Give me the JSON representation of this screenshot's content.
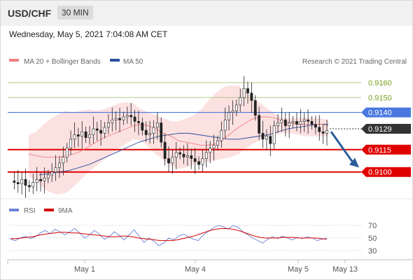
{
  "header": {
    "symbol": "USD/CHF",
    "timeframe": "30 MIN"
  },
  "datetime": "Wednesday, May 5, 2021 7:04:08 AM CET",
  "legend": {
    "ma20": {
      "label": "MA 20 + Bollinger Bands",
      "color": "#f08080"
    },
    "ma50": {
      "label": "MA 50",
      "color": "#2b4f9c"
    },
    "credit": "Research © 2021 Trading Central"
  },
  "rsi_legend": {
    "rsi": {
      "label": "RSI",
      "color": "#6c84d8"
    },
    "ma9": {
      "label": "9MA",
      "color": "#d40000"
    }
  },
  "chart_data": {
    "type": "line",
    "subtype": "candlestick",
    "ylim": [
      0.9082,
      0.9168
    ],
    "x_ticks": [
      "May 1",
      "May 4",
      "May 5",
      "May 13"
    ],
    "price_series": [
      0.9094,
      0.9093,
      0.9092,
      0.9095,
      0.9091,
      0.909,
      0.9093,
      0.9095,
      0.9094,
      0.9096,
      0.9098,
      0.91,
      0.9103,
      0.9106,
      0.911,
      0.9116,
      0.9122,
      0.9125,
      0.9124,
      0.9127,
      0.9123,
      0.9125,
      0.9129,
      0.9128,
      0.9126,
      0.913,
      0.9133,
      0.9135,
      0.9136,
      0.9135,
      0.9137,
      0.9138,
      0.9137,
      0.9134,
      0.9133,
      0.9128,
      0.9125,
      0.9126,
      0.913,
      0.9133,
      0.912,
      0.9109,
      0.9106,
      0.911,
      0.9113,
      0.9112,
      0.911,
      0.9111,
      0.9109,
      0.9107,
      0.9105,
      0.9109,
      0.9113,
      0.9116,
      0.9118,
      0.9121,
      0.9128,
      0.9135,
      0.914,
      0.9141,
      0.9145,
      0.915,
      0.9156,
      0.9153,
      0.9148,
      0.9138,
      0.9126,
      0.9122,
      0.9124,
      0.9119,
      0.9131,
      0.9133,
      0.9135,
      0.9131,
      0.9133,
      0.9134,
      0.9132,
      0.9134,
      0.9135,
      0.9134,
      0.9132,
      0.913,
      0.9127,
      0.9126,
      0.9128
    ],
    "ma20": [
      0.9112,
      0.9111,
      0.911,
      0.911,
      0.911,
      0.9111,
      0.9112,
      0.9114,
      0.9117,
      0.912,
      0.9123,
      0.9125,
      0.9127,
      0.9129,
      0.9131,
      0.9132,
      0.9131,
      0.9129,
      0.9126,
      0.9124,
      0.9121,
      0.912,
      0.9119,
      0.9118,
      0.9118,
      0.9119,
      0.9122,
      0.9126,
      0.913,
      0.9133,
      0.9136,
      0.9137,
      0.9137,
      0.9136,
      0.9134,
      0.9133,
      0.9132,
      0.9132,
      0.9132,
      0.9132,
      0.9131
    ],
    "bb_upper": [
      0.9125,
      0.9127,
      0.9132,
      0.9136,
      0.9139,
      0.9141,
      0.914,
      0.9141,
      0.9142,
      0.9141,
      0.9142,
      0.9144,
      0.9146,
      0.9147,
      0.9146,
      0.9142,
      0.914,
      0.9138,
      0.9136,
      0.9134,
      0.9134,
      0.9136,
      0.9138,
      0.9142,
      0.9148,
      0.9153,
      0.9157,
      0.9158,
      0.9158,
      0.9154,
      0.9149,
      0.9146,
      0.9142,
      0.9139,
      0.9136,
      0.9136,
      0.9136,
      0.9137,
      0.9136,
      0.9136,
      0.9135
    ],
    "bb_lower": [
      0.9097,
      0.9094,
      0.9089,
      0.9086,
      0.9085,
      0.9086,
      0.909,
      0.9095,
      0.91,
      0.9104,
      0.9108,
      0.9112,
      0.9116,
      0.9119,
      0.9122,
      0.9121,
      0.9117,
      0.9112,
      0.9108,
      0.9104,
      0.9102,
      0.9103,
      0.9105,
      0.9106,
      0.9107,
      0.9108,
      0.9109,
      0.911,
      0.9112,
      0.9116,
      0.9119,
      0.9122,
      0.9124,
      0.9125,
      0.9126,
      0.9126,
      0.9125,
      0.9124,
      0.9124,
      0.9124,
      0.9124
    ],
    "ma50": [
      0.9098,
      0.9099,
      0.91,
      0.9101,
      0.9103,
      0.9105,
      0.9108,
      0.9111,
      0.9114,
      0.9117,
      0.912,
      0.9122,
      0.9124,
      0.9125,
      0.9126,
      0.9126,
      0.9125,
      0.9124,
      0.9123,
      0.9122,
      0.9122,
      0.9123,
      0.9124,
      0.9125,
      0.9127,
      0.9129,
      0.913,
      0.9131,
      0.9132,
      0.9132
    ],
    "levels": [
      {
        "value": "0.9160",
        "price": 0.916,
        "style": "resistance-minor"
      },
      {
        "value": "0.9150",
        "price": 0.915,
        "style": "resistance-minor"
      },
      {
        "value": "0.9140",
        "price": 0.914,
        "style": "pivot"
      },
      {
        "value": "0.9129",
        "price": 0.9129,
        "style": "current"
      },
      {
        "value": "0.9115",
        "price": 0.9115,
        "style": "support"
      },
      {
        "value": "0.9100",
        "price": 0.91,
        "style": "support"
      }
    ],
    "forecast_target": 0.9103,
    "rsi": {
      "ylim": [
        20,
        80
      ],
      "y_ticks": [
        "70",
        "50",
        "30"
      ],
      "rsi_values": [
        48,
        46,
        50,
        53,
        49,
        52,
        58,
        62,
        57,
        64,
        60,
        55,
        60,
        65,
        58,
        50,
        55,
        62,
        56,
        48,
        52,
        60,
        54,
        47,
        55,
        63,
        53,
        43,
        50,
        45,
        38,
        42,
        50,
        47,
        53,
        56,
        52,
        48,
        46,
        55,
        60,
        66,
        70,
        68,
        64,
        70,
        67,
        60,
        55,
        50,
        46,
        42,
        48,
        52,
        49,
        53,
        50,
        47,
        51,
        49,
        52,
        50,
        46,
        48,
        50
      ],
      "ma9_values": [
        49,
        49,
        50,
        51,
        52,
        54,
        56,
        57,
        58,
        59,
        59,
        58,
        58,
        57,
        56,
        55,
        54,
        53,
        52,
        52,
        53,
        53,
        52,
        50,
        49,
        48,
        47,
        46,
        46,
        46,
        47,
        49,
        51,
        53,
        56,
        59,
        62,
        64,
        65,
        65,
        64,
        62,
        59,
        56,
        53,
        51,
        50,
        50,
        50,
        51,
        51,
        51,
        50,
        50,
        50,
        50,
        49,
        48
      ]
    },
    "colors": {
      "support": "#e00000",
      "pivot": "#4a78e0",
      "resistance_minor": "#b5c98a",
      "resistance_text": "#7aa020",
      "current": "#333333",
      "bb_fill": "#fbd7d7",
      "arrow": "#2b5c9a",
      "candle": "#222222"
    }
  }
}
